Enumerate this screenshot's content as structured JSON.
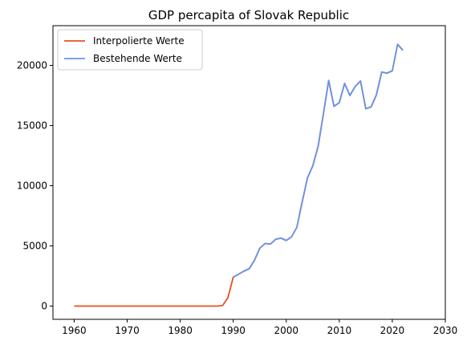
{
  "chart_data": {
    "type": "line",
    "title": "GDP percapita of Slovak Republic",
    "xlabel": "",
    "ylabel": "",
    "xlim": [
      1956,
      2030
    ],
    "ylim": [
      -1100,
      23300
    ],
    "xticks": [
      1960,
      1970,
      1980,
      1990,
      2000,
      2010,
      2020,
      2030
    ],
    "yticks": [
      0,
      5000,
      10000,
      15000,
      20000
    ],
    "grid": false,
    "legend_position": "top-left",
    "series": [
      {
        "name": "Interpolierte Werte",
        "color": "#e8501e",
        "x": [
          1960,
          1961,
          1962,
          1963,
          1964,
          1965,
          1966,
          1967,
          1968,
          1969,
          1970,
          1971,
          1972,
          1973,
          1974,
          1975,
          1976,
          1977,
          1978,
          1979,
          1980,
          1981,
          1982,
          1983,
          1984,
          1985,
          1986,
          1987,
          1988,
          1989,
          1990,
          1991,
          1992,
          1993,
          1994,
          1995,
          1996,
          1997,
          1998,
          1999,
          2000,
          2001,
          2002,
          2003,
          2004,
          2005,
          2006,
          2007,
          2008,
          2009,
          2010,
          2011,
          2012,
          2013,
          2014,
          2015,
          2016,
          2017,
          2018,
          2019,
          2020,
          2021,
          2022
        ],
        "values": [
          0,
          0,
          0,
          0,
          0,
          0,
          0,
          0,
          0,
          0,
          0,
          0,
          0,
          0,
          0,
          0,
          0,
          0,
          0,
          0,
          0,
          0,
          0,
          0,
          0,
          0,
          0,
          0,
          50,
          700,
          2400,
          2650,
          2900,
          3100,
          3800,
          4800,
          5200,
          5150,
          5550,
          5650,
          5450,
          5750,
          6550,
          8650,
          10650,
          11650,
          13250,
          15950,
          18750,
          16600,
          16900,
          18500,
          17500,
          18250,
          18700,
          16400,
          16550,
          17550,
          19450,
          19350,
          19550,
          21750,
          21250
        ]
      },
      {
        "name": "Bestehende Werte",
        "color": "#6495ed",
        "x": [
          1990,
          1991,
          1992,
          1993,
          1994,
          1995,
          1996,
          1997,
          1998,
          1999,
          2000,
          2001,
          2002,
          2003,
          2004,
          2005,
          2006,
          2007,
          2008,
          2009,
          2010,
          2011,
          2012,
          2013,
          2014,
          2015,
          2016,
          2017,
          2018,
          2019,
          2020,
          2021,
          2022
        ],
        "values": [
          2400,
          2650,
          2900,
          3100,
          3800,
          4800,
          5200,
          5150,
          5550,
          5650,
          5450,
          5750,
          6550,
          8650,
          10650,
          11650,
          13250,
          15950,
          18750,
          16600,
          16900,
          18500,
          17500,
          18250,
          18700,
          16400,
          16550,
          17550,
          19450,
          19350,
          19550,
          21750,
          21250
        ]
      }
    ]
  }
}
